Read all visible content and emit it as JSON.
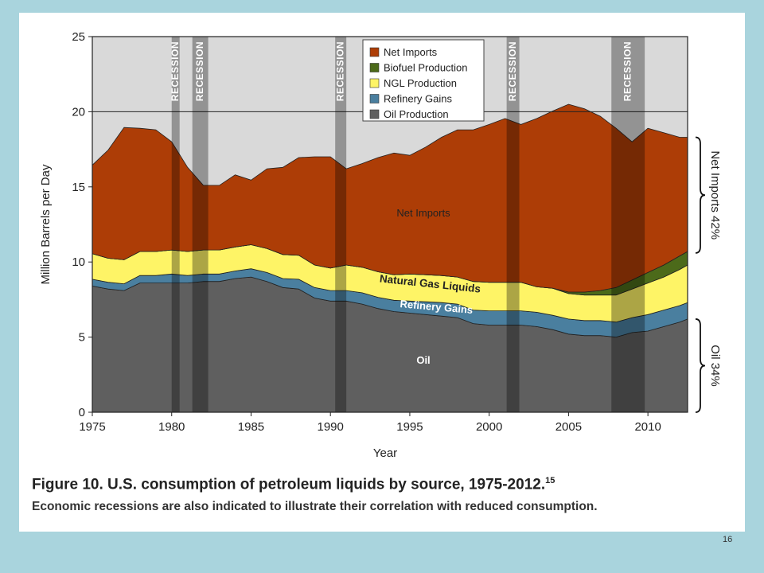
{
  "caption": {
    "title": "Figure 10. U.S. consumption of petroleum liquids by source, 1975-2012.",
    "footnote": "15",
    "subtitle": "Economic recessions are also indicated to illustrate their correlation with reduced consumption."
  },
  "slide_number": "16",
  "chart_data": {
    "type": "area",
    "stacked": true,
    "xlabel": "Year",
    "ylabel": "Million Barrels per Day",
    "xlim": [
      1975,
      2012.5
    ],
    "ylim": [
      0,
      25
    ],
    "x_ticks": [
      1975,
      1980,
      1985,
      1990,
      1995,
      2000,
      2005,
      2010
    ],
    "y_ticks": [
      0,
      5,
      10,
      15,
      20,
      25
    ],
    "reference_line": 20,
    "grid": false,
    "legend_placement": "top-center",
    "legend": [
      "Net Imports",
      "Biofuel Production",
      "NGL Production",
      "Refinery Gains",
      "Oil Production"
    ],
    "x": [
      1975,
      1976,
      1977,
      1978,
      1979,
      1980,
      1981,
      1982,
      1983,
      1984,
      1985,
      1986,
      1987,
      1988,
      1989,
      1990,
      1991,
      1992,
      1993,
      1994,
      1995,
      1996,
      1997,
      1998,
      1999,
      2000,
      2001,
      2002,
      2003,
      2004,
      2005,
      2006,
      2007,
      2008,
      2009,
      2010,
      2011,
      2012,
      2012.5
    ],
    "series": [
      {
        "name": "Oil Production",
        "color": "#5f5f5f",
        "values": [
          8.4,
          8.2,
          8.1,
          8.6,
          8.6,
          8.6,
          8.6,
          8.7,
          8.7,
          8.9,
          9.0,
          8.7,
          8.3,
          8.2,
          7.6,
          7.4,
          7.4,
          7.2,
          6.9,
          6.7,
          6.6,
          6.5,
          6.4,
          6.3,
          5.9,
          5.8,
          5.8,
          5.8,
          5.7,
          5.5,
          5.2,
          5.1,
          5.1,
          5.0,
          5.3,
          5.4,
          5.7,
          6.0,
          6.2
        ]
      },
      {
        "name": "Refinery Gains",
        "color": "#4a7f9f",
        "values": [
          0.45,
          0.45,
          0.45,
          0.5,
          0.5,
          0.6,
          0.5,
          0.5,
          0.5,
          0.5,
          0.55,
          0.6,
          0.6,
          0.65,
          0.7,
          0.7,
          0.7,
          0.75,
          0.75,
          0.75,
          0.8,
          0.85,
          0.9,
          0.9,
          0.9,
          0.95,
          0.95,
          0.95,
          0.95,
          0.95,
          1.0,
          1.0,
          1.0,
          1.0,
          1.0,
          1.1,
          1.1,
          1.1,
          1.1
        ]
      },
      {
        "name": "NGL Production",
        "color": "#fef466",
        "values": [
          1.7,
          1.6,
          1.6,
          1.6,
          1.6,
          1.6,
          1.6,
          1.6,
          1.6,
          1.6,
          1.6,
          1.6,
          1.6,
          1.6,
          1.5,
          1.5,
          1.7,
          1.7,
          1.7,
          1.7,
          1.8,
          1.8,
          1.8,
          1.8,
          1.9,
          1.9,
          1.9,
          1.9,
          1.7,
          1.8,
          1.7,
          1.7,
          1.7,
          1.8,
          1.9,
          2.1,
          2.2,
          2.4,
          2.5
        ]
      },
      {
        "name": "Biofuel Production",
        "color": "#4c6a1a",
        "values": [
          0,
          0,
          0,
          0,
          0,
          0,
          0,
          0,
          0,
          0,
          0,
          0,
          0,
          0,
          0,
          0,
          0,
          0,
          0,
          0,
          0,
          0,
          0,
          0,
          0,
          0,
          0,
          0,
          0,
          0,
          0.1,
          0.2,
          0.3,
          0.5,
          0.6,
          0.7,
          0.8,
          0.9,
          0.9
        ]
      },
      {
        "name": "Net Imports",
        "color": "#ad3d06",
        "values": [
          5.9,
          7.2,
          8.8,
          8.2,
          8.1,
          7.2,
          5.6,
          4.3,
          4.3,
          4.8,
          4.3,
          5.3,
          5.8,
          6.5,
          7.2,
          7.4,
          6.4,
          6.9,
          7.6,
          8.1,
          7.9,
          8.5,
          9.2,
          9.8,
          10.1,
          10.5,
          10.9,
          10.5,
          11.2,
          11.8,
          12.5,
          12.2,
          11.6,
          10.6,
          9.2,
          9.6,
          8.8,
          7.9,
          7.6
        ]
      }
    ],
    "recessions": [
      {
        "label": "RECESSION",
        "start": 1980.0,
        "end": 1980.5
      },
      {
        "label": "RECESSION",
        "start": 1981.3,
        "end": 1982.3
      },
      {
        "label": "RECESSION",
        "start": 1990.3,
        "end": 1991.0
      },
      {
        "label": "RECESSION",
        "start": 2001.1,
        "end": 2001.9
      },
      {
        "label": "RECESSION",
        "start": 2007.7,
        "end": 2009.8
      }
    ],
    "annotations": {
      "net_imports": "Net Imports",
      "ngl": "Natural Gas Liquids",
      "refinery": "Refinery Gains",
      "oil": "Oil"
    },
    "bracket_labels": [
      {
        "label": "Net Imports 42%",
        "from": 10.6,
        "to": 18.3
      },
      {
        "label": "Oil 34%",
        "from": 0,
        "to": 6.2
      }
    ]
  }
}
